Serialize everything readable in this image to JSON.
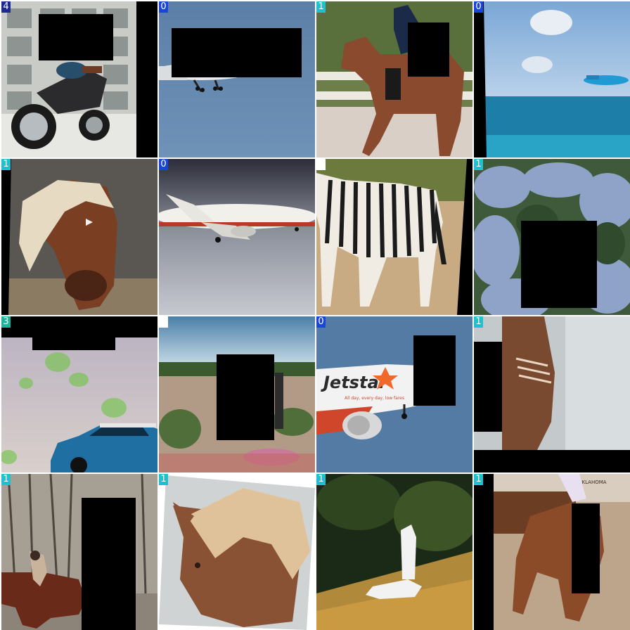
{
  "tiles": [
    {
      "label": "4",
      "subject": "motorcycle"
    },
    {
      "label": "0",
      "subject": "airplane"
    },
    {
      "label": "1",
      "subject": "horse-rider"
    },
    {
      "label": "0",
      "subject": "airplane-over-sea"
    },
    {
      "label": "1",
      "subject": "horse-head"
    },
    {
      "label": "0",
      "subject": "airplane"
    },
    {
      "label": "",
      "subject": "zebra"
    },
    {
      "label": "1",
      "subject": "bushes"
    },
    {
      "label": "3",
      "subject": "car"
    },
    {
      "label": "",
      "subject": "zebra-field"
    },
    {
      "label": "0",
      "subject": "jetstar-airplane"
    },
    {
      "label": "1",
      "subject": "horse-closeup"
    },
    {
      "label": "1",
      "subject": "horse-rider-forest"
    },
    {
      "label": "1",
      "subject": "horse-mane"
    },
    {
      "label": "1",
      "subject": "white-horse"
    },
    {
      "label": "1",
      "subject": "rodeo-horse"
    }
  ],
  "jetstar_logo": "Jetstar",
  "jetstar_slogan": "All day, every day, low fares",
  "rodeo_sign": "OKLAHOMA",
  "colors": {
    "badge_0": "#1846d9",
    "badge_1": "#1fc0d2",
    "badge_3": "#1fb39a",
    "badge_4": "#1b2a8c",
    "mask": "#000000"
  }
}
